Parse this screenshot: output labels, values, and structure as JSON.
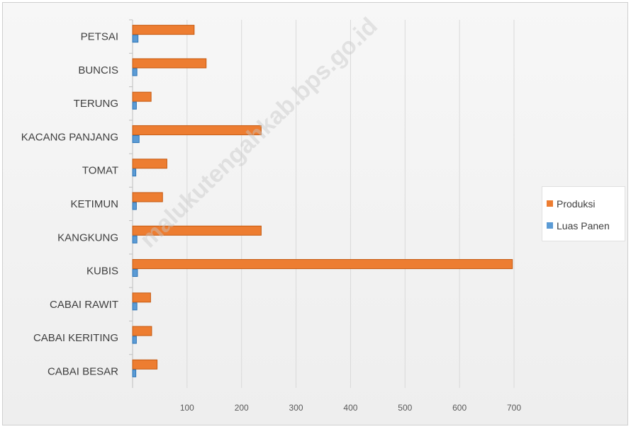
{
  "chart_data": {
    "type": "bar",
    "orientation": "horizontal",
    "categories": [
      "PETSAI",
      "BUNCIS",
      "TERUNG",
      "KACANG PANJANG",
      "TOMAT",
      "KETIMUN",
      "KANGKUNG",
      "KUBIS",
      "CABAI RAWIT",
      "CABAI KERITING",
      "CABAI BESAR"
    ],
    "series": [
      {
        "name": "Produksi",
        "color": "#ED7D31",
        "values": [
          113,
          135,
          34,
          236,
          63,
          55,
          236,
          697,
          33,
          35,
          45
        ]
      },
      {
        "name": "Luas Panen",
        "color": "#5B9BD5",
        "values": [
          10,
          8,
          7,
          12,
          6,
          7,
          8,
          9,
          8,
          7,
          6
        ]
      }
    ],
    "xlim": [
      0,
      700
    ],
    "xticks": [
      "100",
      "200",
      "300",
      "400",
      "500",
      "600",
      "700"
    ],
    "grid": true,
    "legend_position": "right"
  },
  "watermark": "malukutengahkab.bps.go.id"
}
